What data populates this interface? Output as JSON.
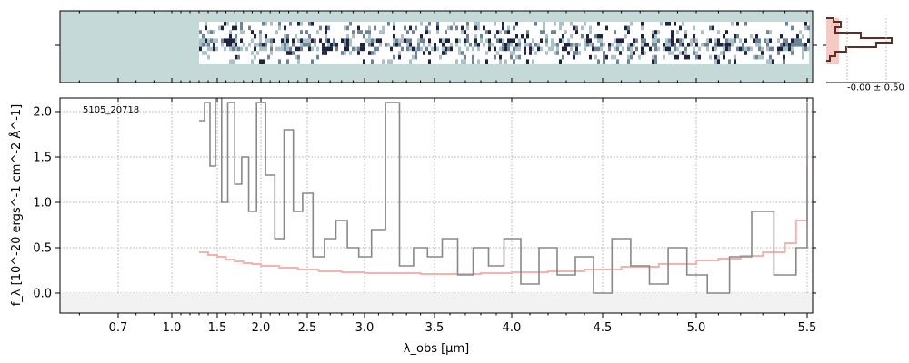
{
  "chart_data": {
    "type": "line",
    "annotation": "5105_20718",
    "xlabel": "λ_obs [μm]",
    "ylabel": "f_λ [10^-20 ergs^-1 cm^-2 Å^-1]",
    "xlim": [
      0.55,
      5.52
    ],
    "ylim": [
      -0.22,
      2.15
    ],
    "x_scale": "arcsinh-like (compressed at long wavelength)",
    "x_ticks": [
      "0.7",
      "1.0",
      "1.5",
      "2.0",
      "2.5",
      "3.0",
      "3.5",
      "4.0",
      "4.5",
      "5.0",
      "5.5"
    ],
    "x_tick_values": [
      0.7,
      1.0,
      1.5,
      2.0,
      2.5,
      3.0,
      3.5,
      4.0,
      4.5,
      5.0,
      5.5
    ],
    "y_ticks": [
      "0.0",
      "0.5",
      "1.0",
      "1.5",
      "2.0"
    ],
    "y_tick_values": [
      0.0,
      0.5,
      1.0,
      1.5,
      2.0
    ],
    "grid": true,
    "series": [
      {
        "color": "#888888",
        "x": [
          1.3,
          1.36,
          1.42,
          1.48,
          1.55,
          1.62,
          1.7,
          1.78,
          1.86,
          1.95,
          2.05,
          2.15,
          2.25,
          2.35,
          2.45,
          2.55,
          2.65,
          2.75,
          2.85,
          2.95,
          3.05,
          3.15,
          3.25,
          3.35,
          3.45,
          3.55,
          3.65,
          3.75,
          3.85,
          3.95,
          4.05,
          4.15,
          4.25,
          4.35,
          4.45,
          4.55,
          4.65,
          4.75,
          4.85,
          4.95,
          5.05,
          5.15,
          5.25,
          5.35,
          5.45,
          5.5
        ],
        "y": [
          1.9,
          2.1,
          1.4,
          2.2,
          1.0,
          2.1,
          1.2,
          1.5,
          0.9,
          2.1,
          1.3,
          0.6,
          1.8,
          0.9,
          1.1,
          0.4,
          0.6,
          0.8,
          0.5,
          0.4,
          0.7,
          2.1,
          0.3,
          0.5,
          0.4,
          0.6,
          0.2,
          0.5,
          0.3,
          0.6,
          0.1,
          0.5,
          0.2,
          0.4,
          0.0,
          0.6,
          0.3,
          0.1,
          0.5,
          0.2,
          0.0,
          0.4,
          0.9,
          0.2,
          0.5,
          2.1
        ]
      },
      {
        "color": "#f4b4ae",
        "x": [
          1.3,
          1.4,
          1.5,
          1.6,
          1.7,
          1.8,
          1.9,
          2.0,
          2.2,
          2.4,
          2.6,
          2.8,
          3.0,
          3.2,
          3.4,
          3.6,
          3.8,
          4.0,
          4.2,
          4.4,
          4.6,
          4.8,
          5.0,
          5.1,
          5.2,
          5.3,
          5.4,
          5.45,
          5.5
        ],
        "y": [
          0.45,
          0.42,
          0.4,
          0.37,
          0.35,
          0.33,
          0.32,
          0.3,
          0.28,
          0.26,
          0.24,
          0.23,
          0.22,
          0.22,
          0.21,
          0.21,
          0.22,
          0.23,
          0.24,
          0.26,
          0.29,
          0.32,
          0.36,
          0.38,
          0.41,
          0.45,
          0.55,
          0.8,
          1.4
        ]
      }
    ],
    "top_panel": {
      "type": "heatmap",
      "description": "2D spectrum strip"
    },
    "side_panel": {
      "type": "histogram",
      "label": "-0.00 ± 0.50"
    }
  },
  "colors": {
    "spec_bg": "#c5d9d8",
    "spec_dark": "#1f2340",
    "flux": "#888888",
    "error": "#f4b4ae",
    "hist_dark": "#5b2f25",
    "hist_fill": "#f7c9c2"
  }
}
